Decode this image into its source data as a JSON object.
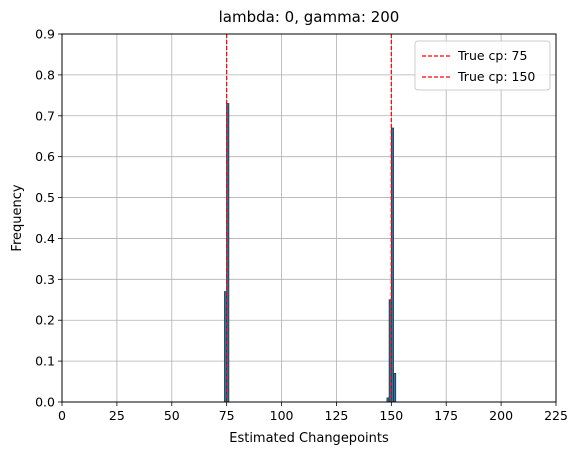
{
  "chart_data": {
    "type": "bar",
    "title": "lambda: 0, gamma: 200",
    "xlabel": "Estimated Changepoints",
    "ylabel": "Frequency",
    "xlim": [
      0,
      225
    ],
    "ylim": [
      0,
      0.9
    ],
    "xticks": [
      0,
      25,
      50,
      75,
      100,
      125,
      150,
      175,
      200,
      225
    ],
    "yticks": [
      0.0,
      0.1,
      0.2,
      0.3,
      0.4,
      0.5,
      0.6,
      0.7,
      0.8,
      0.9
    ],
    "xtick_labels": [
      "0",
      "25",
      "50",
      "75",
      "100",
      "125",
      "150",
      "175",
      "200",
      "225"
    ],
    "ytick_labels": [
      "0.0",
      "0.1",
      "0.2",
      "0.3",
      "0.4",
      "0.5",
      "0.6",
      "0.7",
      "0.8",
      "0.9"
    ],
    "grid": true,
    "legend_position": "top-right",
    "bar_color": "#1f77b4",
    "bar_edge_color": "#333333",
    "bin_width": 1,
    "bars": [
      {
        "x": 74,
        "value": 0.27
      },
      {
        "x": 75,
        "value": 0.73
      },
      {
        "x": 148,
        "value": 0.01
      },
      {
        "x": 149,
        "value": 0.25
      },
      {
        "x": 150,
        "value": 0.67
      },
      {
        "x": 151,
        "value": 0.07
      }
    ],
    "reference_lines": [
      {
        "x": 75,
        "label": "True cp: 75",
        "color": "#ff0000"
      },
      {
        "x": 150,
        "label": "True cp: 150",
        "color": "#ff0000"
      }
    ]
  }
}
